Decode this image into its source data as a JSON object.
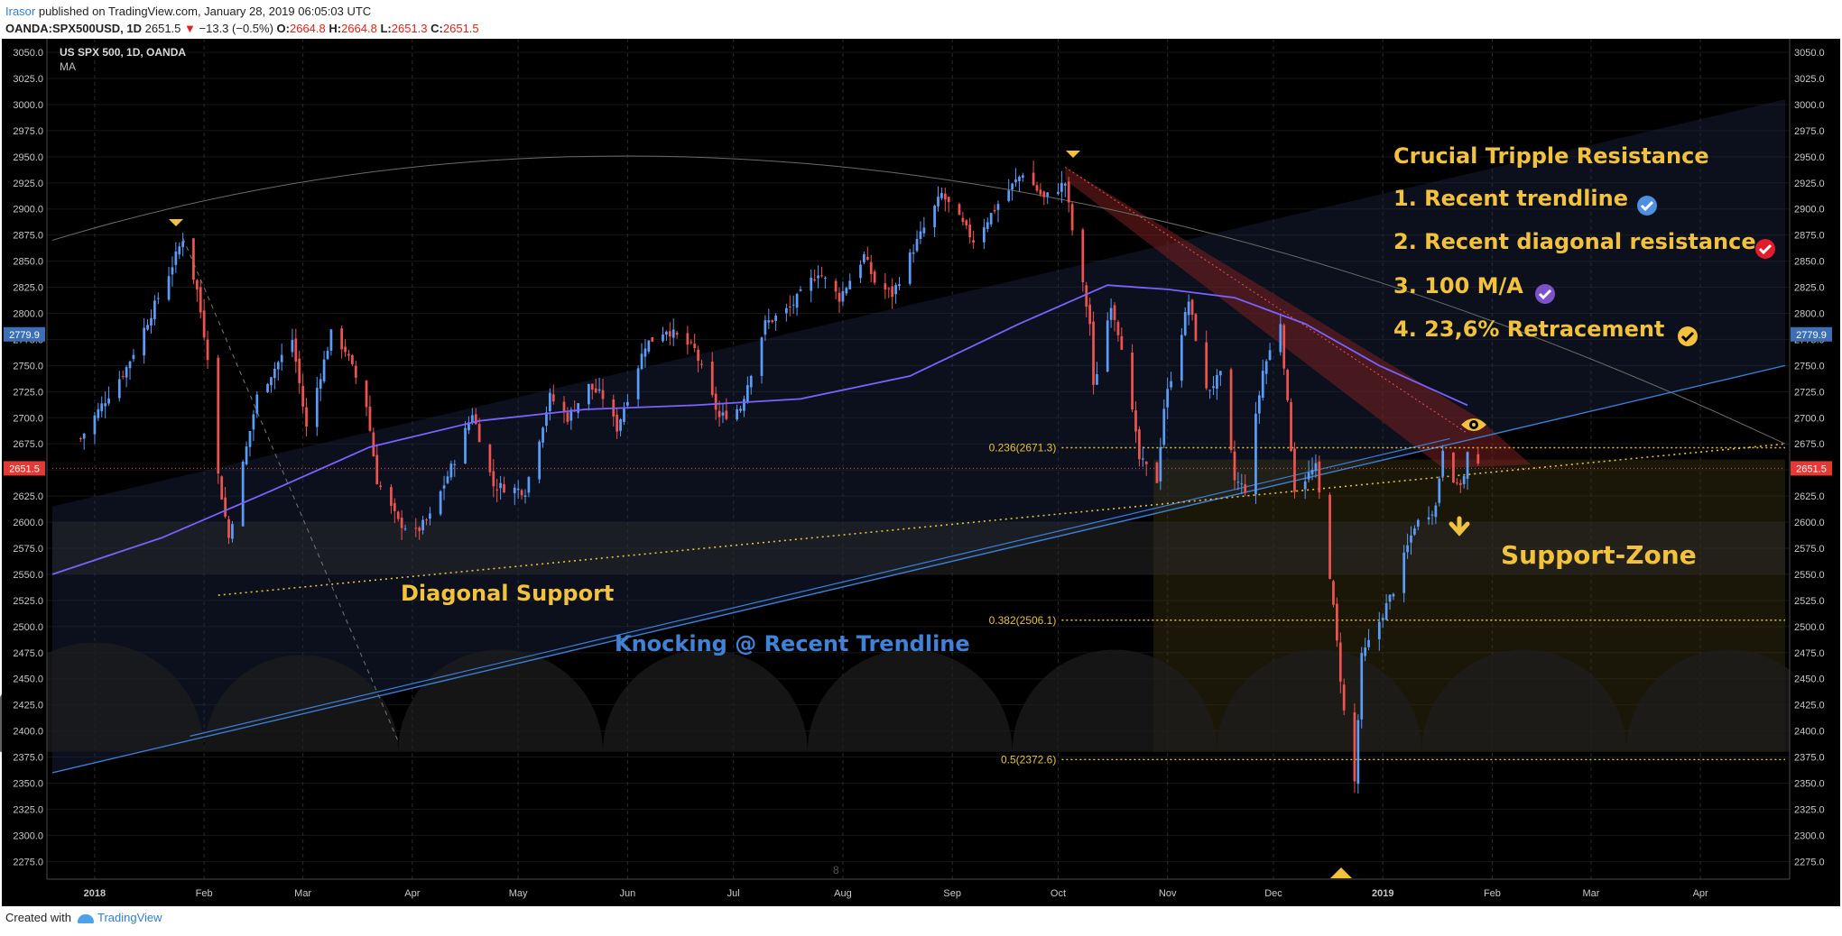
{
  "header": {
    "author": "Irasor",
    "published": " published on TradingView.com, January 28, 2019 06:05:03 UTC",
    "symbol": "OANDA:SPX500USD, 1D",
    "last": "2651.5",
    "change_arrow": "▼",
    "change": "−13.3 (−0.5%)",
    "o_label": "O:",
    "o_value": "2664.8",
    "h_label": "H:",
    "h_value": "2664.8",
    "l_label": "L:",
    "l_value": "2651.3",
    "c_label": "C:",
    "c_value": "2651.5"
  },
  "footer": {
    "created_with": "Created with",
    "brand": "TradingView"
  },
  "colors": {
    "background": "#000000",
    "up": "#5b9cf6",
    "down": "#ef5350",
    "ma": "#7b61ff",
    "annotation": "#f2c23c",
    "trendline_label": "#3f83d9",
    "price_line": "#ef5350"
  },
  "chart_data": {
    "type": "candlestick",
    "title": "US SPX 500, 1D, OANDA",
    "indicator": "MA",
    "y_ticks": [
      3050,
      3025,
      3000,
      2975,
      2950,
      2925,
      2900,
      2875,
      2850,
      2825,
      2800,
      2775,
      2750,
      2725,
      2700,
      2675,
      2650,
      2625,
      2600,
      2575,
      2550,
      2525,
      2500,
      2475,
      2450,
      2425,
      2400,
      2375,
      2350,
      2325,
      2300,
      2275
    ],
    "ylim": [
      2258,
      3063
    ],
    "x_ticks": [
      "2018",
      "Feb",
      "Mar",
      "Apr",
      "May",
      "Jun",
      "Jul",
      "Aug",
      "Sep",
      "Oct",
      "Nov",
      "Dec",
      "2019",
      "Feb",
      "Mar",
      "Apr"
    ],
    "x_tick_dates": [
      "2018-01-01",
      "2018-02-01",
      "2018-03-01",
      "2018-04-01",
      "2018-05-01",
      "2018-06-01",
      "2018-07-01",
      "2018-08-01",
      "2018-09-01",
      "2018-10-01",
      "2018-11-01",
      "2018-12-01",
      "2019-01-01",
      "2019-02-01",
      "2019-03-01",
      "2019-04-01"
    ],
    "x_range": [
      "2017-12-20",
      "2019-04-25"
    ],
    "price_markers": [
      {
        "label": "2779.9",
        "value": 2779.9,
        "style": "blue"
      },
      {
        "label": "2651.5",
        "value": 2651.5,
        "style": "red"
      }
    ],
    "close_path": [
      [
        "2017-12-28",
        2680
      ],
      [
        "2018-01-03",
        2712
      ],
      [
        "2018-01-10",
        2748
      ],
      [
        "2018-01-17",
        2800
      ],
      [
        "2018-01-22",
        2838
      ],
      [
        "2018-01-26",
        2872
      ],
      [
        "2018-01-30",
        2822
      ],
      [
        "2018-02-02",
        2760
      ],
      [
        "2018-02-05",
        2645
      ],
      [
        "2018-02-08",
        2585
      ],
      [
        "2018-02-12",
        2655
      ],
      [
        "2018-02-16",
        2720
      ],
      [
        "2018-02-26",
        2775
      ],
      [
        "2018-03-02",
        2690
      ],
      [
        "2018-03-09",
        2780
      ],
      [
        "2018-03-13",
        2765
      ],
      [
        "2018-03-19",
        2712
      ],
      [
        "2018-03-22",
        2640
      ],
      [
        "2018-03-28",
        2600
      ],
      [
        "2018-04-02",
        2590
      ],
      [
        "2018-04-06",
        2605
      ],
      [
        "2018-04-13",
        2660
      ],
      [
        "2018-04-18",
        2705
      ],
      [
        "2018-04-24",
        2635
      ],
      [
        "2018-05-03",
        2630
      ],
      [
        "2018-05-10",
        2720
      ],
      [
        "2018-05-15",
        2700
      ],
      [
        "2018-05-21",
        2730
      ],
      [
        "2018-05-25",
        2720
      ],
      [
        "2018-05-29",
        2690
      ],
      [
        "2018-06-06",
        2770
      ],
      [
        "2018-06-12",
        2785
      ],
      [
        "2018-06-20",
        2765
      ],
      [
        "2018-06-27",
        2700
      ],
      [
        "2018-07-03",
        2710
      ],
      [
        "2018-07-10",
        2790
      ],
      [
        "2018-07-17",
        2805
      ],
      [
        "2018-07-25",
        2840
      ],
      [
        "2018-07-31",
        2815
      ],
      [
        "2018-08-07",
        2855
      ],
      [
        "2018-08-10",
        2830
      ],
      [
        "2018-08-15",
        2818
      ],
      [
        "2018-08-21",
        2862
      ],
      [
        "2018-08-29",
        2914
      ],
      [
        "2018-09-07",
        2870
      ],
      [
        "2018-09-14",
        2905
      ],
      [
        "2018-09-21",
        2935
      ],
      [
        "2018-09-27",
        2910
      ],
      [
        "2018-10-03",
        2925
      ],
      [
        "2018-10-05",
        2880
      ],
      [
        "2018-10-10",
        2790
      ],
      [
        "2018-10-11",
        2728
      ],
      [
        "2018-10-16",
        2810
      ],
      [
        "2018-10-19",
        2770
      ],
      [
        "2018-10-24",
        2660
      ],
      [
        "2018-10-29",
        2640
      ],
      [
        "2018-10-31",
        2710
      ],
      [
        "2018-11-07",
        2812
      ],
      [
        "2018-11-12",
        2725
      ],
      [
        "2018-11-16",
        2740
      ],
      [
        "2018-11-20",
        2640
      ],
      [
        "2018-11-23",
        2632
      ],
      [
        "2018-11-28",
        2745
      ],
      [
        "2018-12-03",
        2792
      ],
      [
        "2018-12-07",
        2632
      ],
      [
        "2018-12-13",
        2652
      ],
      [
        "2018-12-17",
        2550
      ],
      [
        "2018-12-21",
        2418
      ],
      [
        "2018-12-24",
        2351
      ],
      [
        "2018-12-26",
        2470
      ],
      [
        "2018-12-31",
        2505
      ],
      [
        "2019-01-04",
        2535
      ],
      [
        "2019-01-10",
        2597
      ],
      [
        "2019-01-16",
        2615
      ],
      [
        "2019-01-18",
        2672
      ],
      [
        "2019-01-22",
        2633
      ],
      [
        "2019-01-24",
        2643
      ],
      [
        "2019-01-25",
        2665
      ],
      [
        "2019-01-28",
        2651.5
      ]
    ],
    "moving_average": [
      [
        "2017-12-20",
        2550
      ],
      [
        "2018-01-20",
        2585
      ],
      [
        "2018-02-20",
        2630
      ],
      [
        "2018-03-20",
        2672
      ],
      [
        "2018-04-20",
        2697
      ],
      [
        "2018-05-20",
        2708
      ],
      [
        "2018-06-20",
        2712
      ],
      [
        "2018-07-20",
        2718
      ],
      [
        "2018-08-20",
        2740
      ],
      [
        "2018-09-20",
        2790
      ],
      [
        "2018-10-15",
        2827
      ],
      [
        "2018-11-01",
        2823
      ],
      [
        "2018-11-20",
        2815
      ],
      [
        "2018-12-10",
        2790
      ],
      [
        "2018-12-31",
        2750
      ],
      [
        "2019-01-25",
        2712
      ]
    ],
    "fibonacci": [
      {
        "label": "0.236(2671.3)",
        "value": 2671.3
      },
      {
        "label": "0.382(2506.1)",
        "value": 2506.1
      },
      {
        "label": "0.5(2372.6)",
        "value": 2372.6
      }
    ],
    "annotations": {
      "diagonal_support": "Diagonal Support",
      "knocking": "Knocking @ Recent Trendline",
      "support_zone": "Support-Zone",
      "resistance_title": "Crucial Tripple Resistance",
      "resistance_items": [
        "1. Recent trendline",
        "2. Recent diagonal resistance",
        "3. 100 M/A",
        "4. 23,6% Retracement"
      ]
    },
    "bottom_marker": "8"
  }
}
